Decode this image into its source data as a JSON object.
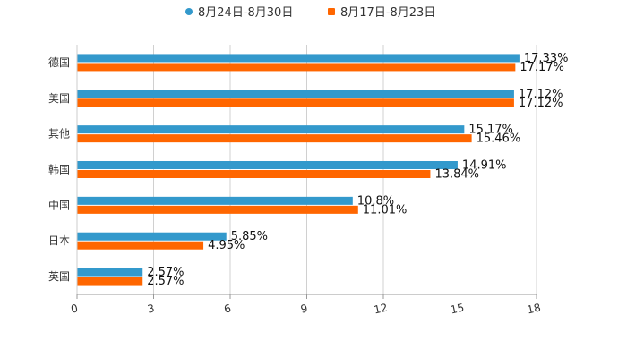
{
  "chart_data": {
    "type": "bar",
    "orientation": "horizontal",
    "categories": [
      "德国",
      "美国",
      "其他",
      "韩国",
      "中国",
      "日本",
      "英国"
    ],
    "series": [
      {
        "name": "8月24日-8月30日",
        "color": "#3399CC",
        "values": [
          17.33,
          17.12,
          15.17,
          14.91,
          10.8,
          5.85,
          2.57
        ],
        "labels": [
          "17.33%",
          "17.12%",
          "15.17%",
          "14.91%",
          "10.8%",
          "5.85%",
          "2.57%"
        ]
      },
      {
        "name": "8月17日-8月23日",
        "color": "#FF6600",
        "values": [
          17.17,
          17.12,
          15.46,
          13.84,
          11.01,
          4.95,
          2.57
        ],
        "labels": [
          "17.17%",
          "17.12%",
          "15.46%",
          "13.84%",
          "11.01%",
          "4.95%",
          "2.57%"
        ]
      }
    ],
    "xlim": [
      0,
      18
    ],
    "xticks": [
      "0",
      "3",
      "6",
      "9",
      "12",
      "15",
      "18"
    ],
    "grid": true,
    "legend": "top-center"
  }
}
